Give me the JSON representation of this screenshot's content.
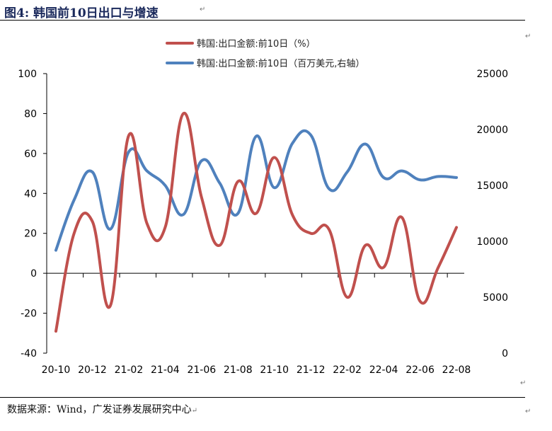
{
  "title": "图4:  韩国前10日出口与增速",
  "source": "数据来源：Wind，广发证券发展研究中心",
  "para_mark": "↵",
  "colors": {
    "red": "#c0504d",
    "blue": "#4f81bd"
  },
  "chart_data": {
    "type": "line",
    "title": "",
    "xlabel": "",
    "ylabel_left": "",
    "ylabel_right": "",
    "x": [
      "2020-10",
      "2020-11",
      "2020-12",
      "2021-01",
      "2021-02",
      "2021-03",
      "2021-04",
      "2021-05",
      "2021-06",
      "2021-07",
      "2021-08",
      "2021-09",
      "2021-10",
      "2021-11",
      "2021-12",
      "2022-01",
      "2022-02",
      "2022-03",
      "2022-04",
      "2022-05",
      "2022-06",
      "2022-07",
      "2022-08"
    ],
    "x_tick_labels": [
      "20-10",
      "20-12",
      "21-02",
      "21-04",
      "21-06",
      "21-08",
      "21-10",
      "21-12",
      "22-02",
      "22-04",
      "22-06",
      "22-08"
    ],
    "x_tick_indices": [
      0,
      2,
      4,
      6,
      8,
      10,
      12,
      14,
      16,
      18,
      20,
      22
    ],
    "ylim_left": [
      -40,
      100
    ],
    "yticks_left": [
      "100",
      "80",
      "60",
      "40",
      "20",
      "0",
      "-20",
      "-40"
    ],
    "ylim_right": [
      0,
      25000
    ],
    "yticks_right": [
      "25000",
      "20000",
      "15000",
      "10000",
      "5000",
      "0"
    ],
    "legend_position": "top",
    "series": [
      {
        "name": "韩国:出口金额:前10日（%）",
        "axis": "left",
        "color": "#c0504d",
        "values": [
          -29,
          20,
          26,
          -16,
          69,
          25,
          23,
          80,
          38,
          14,
          46,
          30,
          58,
          29,
          20,
          22,
          -12,
          14,
          3,
          28,
          -14,
          3,
          23
        ]
      },
      {
        "name": "韩国:出口金额:前10日（百万美元,右轴）",
        "axis": "right",
        "color": "#4f81bd",
        "values": [
          9200,
          13700,
          16200,
          11100,
          18000,
          16300,
          15000,
          12400,
          17200,
          15200,
          12500,
          19400,
          14800,
          18800,
          19500,
          14700,
          16200,
          18700,
          15700,
          16300,
          15500,
          15800,
          15700
        ]
      }
    ]
  }
}
